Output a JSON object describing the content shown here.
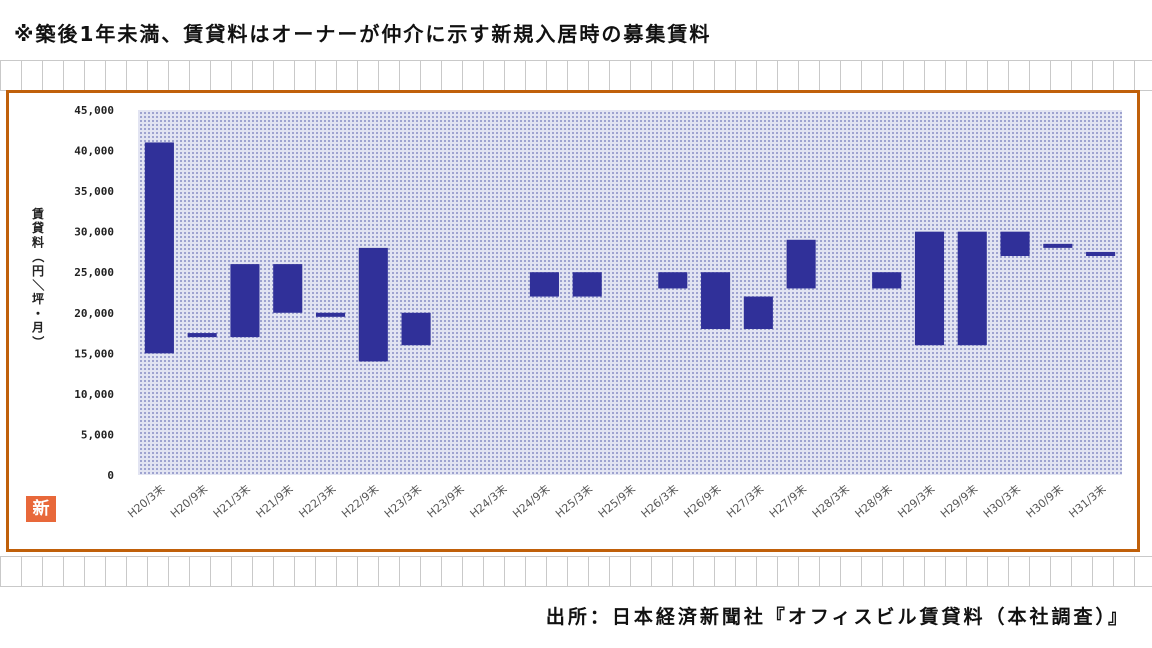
{
  "note": "※築後1年未満、賃貸料はオーナーが仲介に示す新規入居時の募集賃料",
  "source": "出所：日本経済新聞社『オフィスビル賃貸料（本社調査）』",
  "badge": "新",
  "colors": {
    "bar": "#303099",
    "frame": "#c0600a",
    "plot_bg": "#cfd2ea"
  },
  "chart_data": {
    "type": "bar",
    "subtype": "floating-range",
    "ylabel": "賃貸料（円／坪・月）",
    "ylim": [
      0,
      45000
    ],
    "yticks": [
      "0",
      "5,000",
      "10,000",
      "15,000",
      "20,000",
      "25,000",
      "30,000",
      "35,000",
      "40,000",
      "45,000"
    ],
    "grid": false,
    "categories": [
      "H20/3末",
      "H20/9末",
      "H21/3末",
      "H21/9末",
      "H22/3末",
      "H22/9末",
      "H23/3末",
      "H23/9末",
      "H24/3末",
      "H24/9末",
      "H25/3末",
      "H25/9末",
      "H26/3末",
      "H26/9末",
      "H27/3末",
      "H27/9末",
      "H28/3末",
      "H28/9末",
      "H29/3末",
      "H29/9末",
      "H30/3末",
      "H30/9末",
      "H31/3末"
    ],
    "series": [
      {
        "low": [
          15000,
          17000,
          17000,
          20000,
          19500,
          14000,
          16000,
          null,
          null,
          22000,
          22000,
          null,
          23000,
          18000,
          18000,
          23000,
          null,
          23000,
          16000,
          16000,
          27000,
          28000,
          27000
        ],
        "high": [
          41000,
          17500,
          26000,
          26000,
          20000,
          28000,
          20000,
          null,
          null,
          25000,
          25000,
          null,
          25000,
          25000,
          22000,
          29000,
          null,
          25000,
          30000,
          30000,
          30000,
          28500,
          27500
        ]
      }
    ]
  }
}
